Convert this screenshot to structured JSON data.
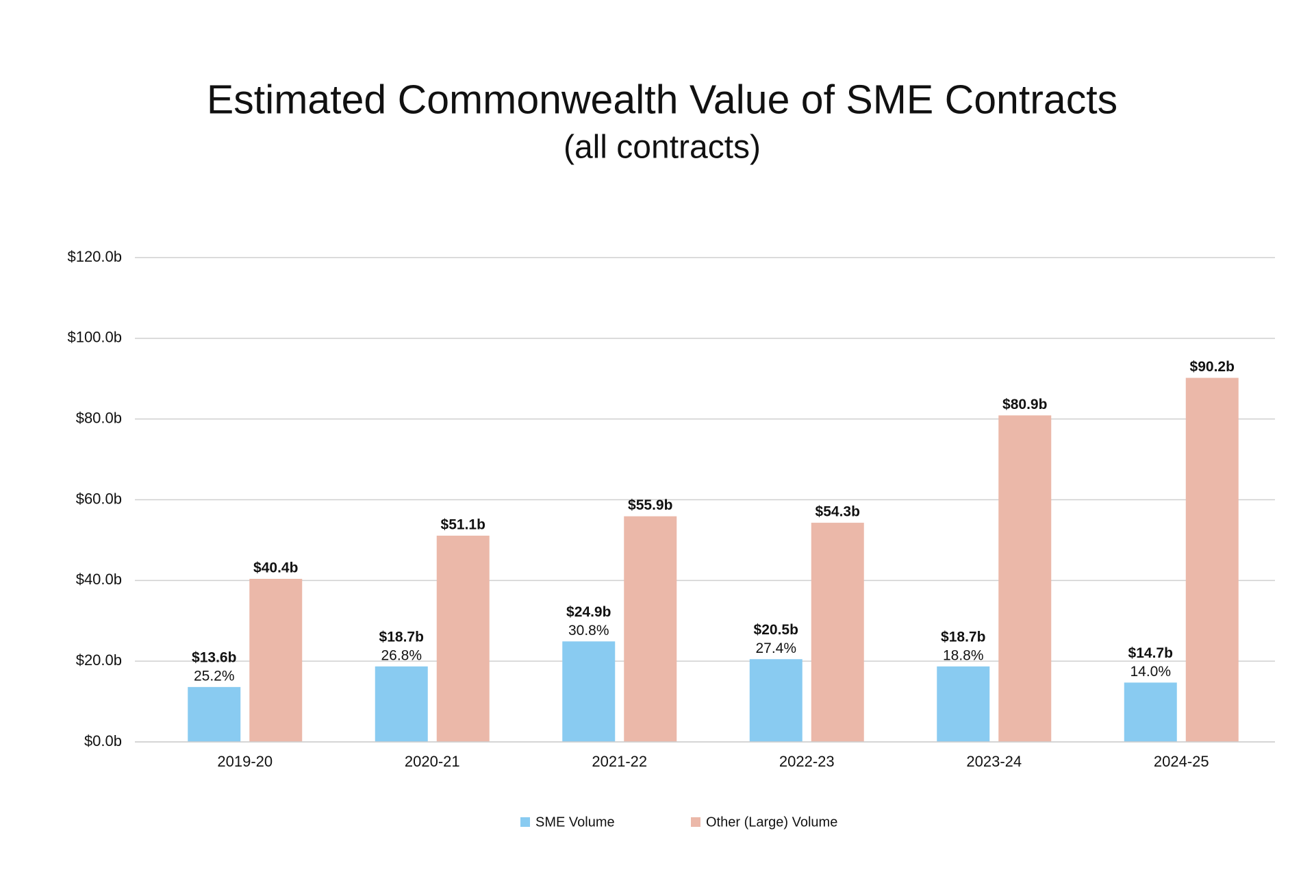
{
  "chart_data": {
    "type": "bar",
    "title": "Estimated Commonwealth Value of SME Contracts",
    "subtitle": "(all contracts)",
    "categories": [
      "2019-20",
      "2020-21",
      "2021-22",
      "2022-23",
      "2023-24",
      "2024-25"
    ],
    "series": [
      {
        "name": "SME Volume",
        "color": "#89cbf1",
        "values": [
          13.6,
          18.7,
          24.9,
          20.5,
          18.7,
          14.7
        ],
        "value_labels": [
          "$13.6b",
          "$18.7b",
          "$24.9b",
          "$20.5b",
          "$18.7b",
          "$14.7b"
        ],
        "shares": {
          "values": [
            25.2,
            26.8,
            30.8,
            27.4,
            18.8,
            14.0
          ],
          "value_labels": [
            "25.2%",
            "26.8%",
            "30.8%",
            "27.4%",
            "18.8%",
            "14.0%"
          ]
        }
      },
      {
        "name": "Other (Large) Volume",
        "color": "#ebb8a9",
        "values": [
          40.4,
          51.1,
          55.9,
          54.3,
          80.9,
          90.2
        ],
        "value_labels": [
          "$40.4b",
          "$51.1b",
          "$55.9b",
          "$54.3b",
          "$80.9b",
          "$90.2b"
        ]
      }
    ],
    "ylim": [
      0,
      120
    ],
    "yticks": [
      {
        "value": 0,
        "label": "$0.0b"
      },
      {
        "value": 20,
        "label": "$20.0b"
      },
      {
        "value": 40,
        "label": "$40.0b"
      },
      {
        "value": 60,
        "label": "$60.0b"
      },
      {
        "value": 80,
        "label": "$80.0b"
      },
      {
        "value": 100,
        "label": "$100.0b"
      },
      {
        "value": 120,
        "label": "$120.0b"
      }
    ],
    "grid": true,
    "legend": "bottom"
  }
}
